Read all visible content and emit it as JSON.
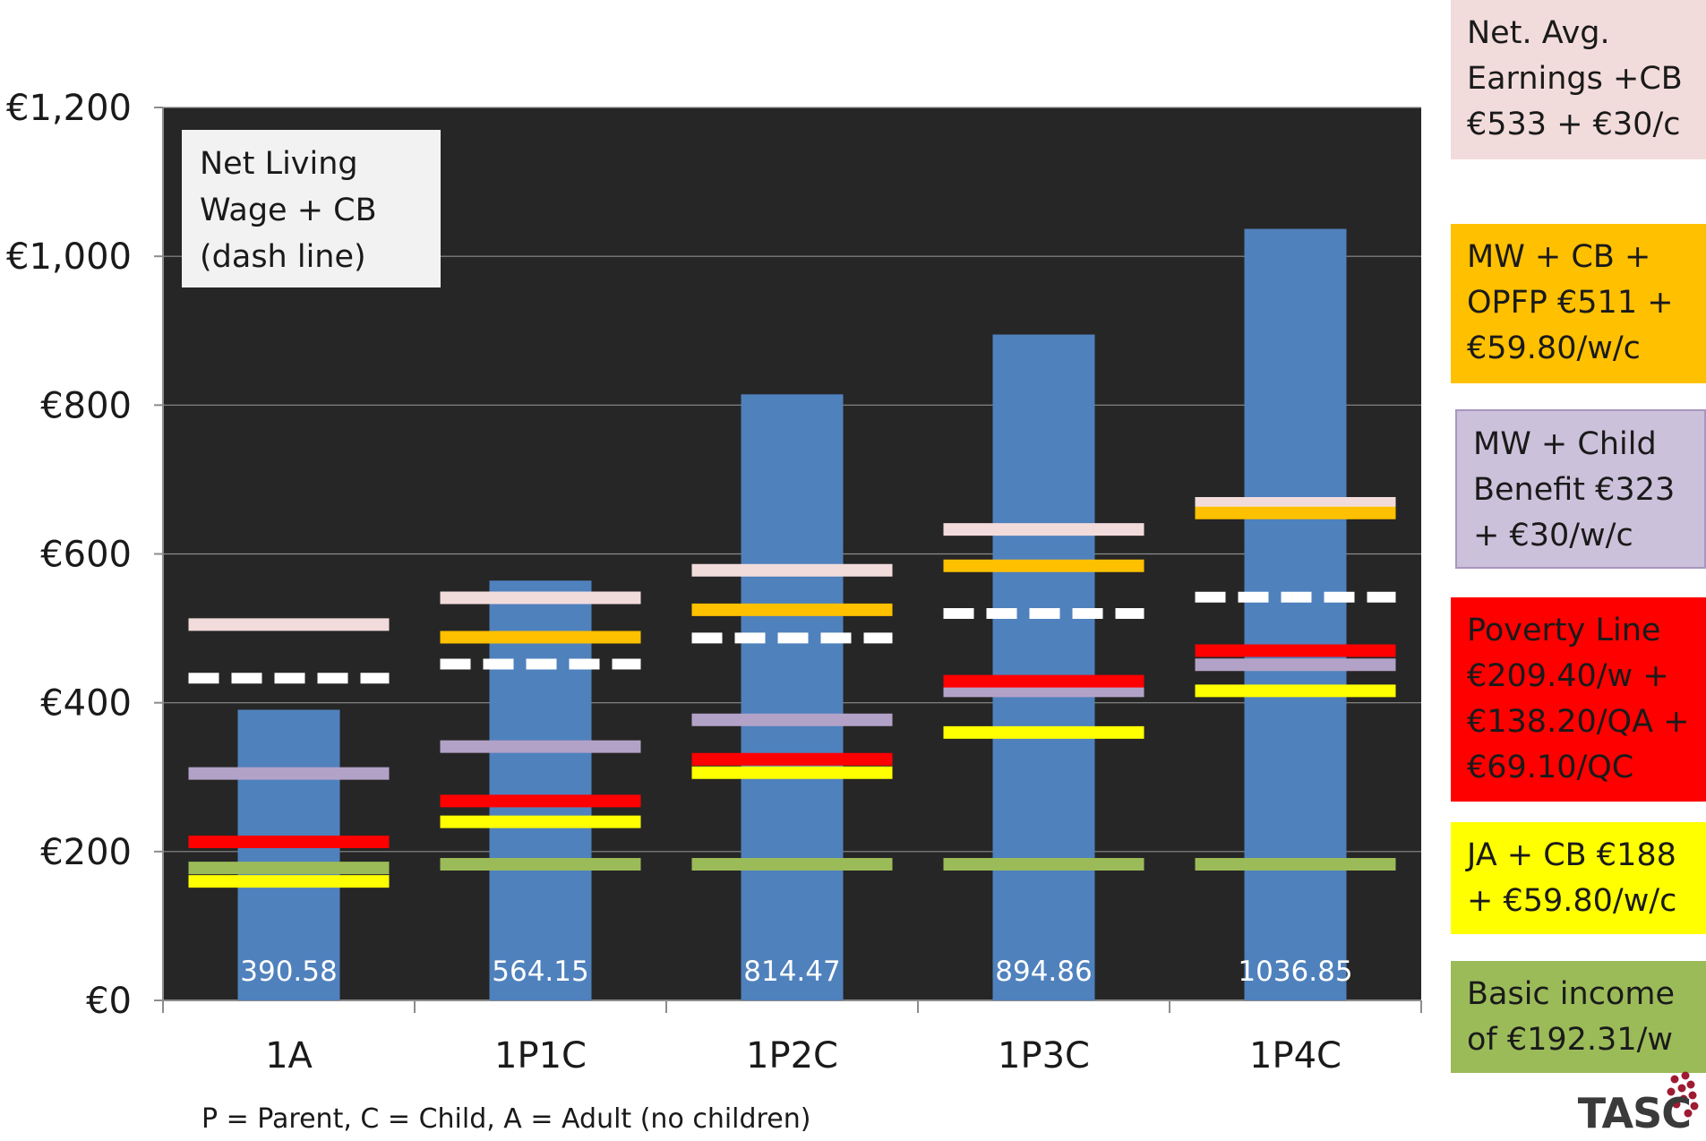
{
  "chart_data": {
    "type": "bar",
    "categories": [
      "1A",
      "1P1C",
      "1P2C",
      "1P3C",
      "1P4C"
    ],
    "values": [
      390.58,
      564.15,
      814.47,
      894.86,
      1036.85
    ],
    "value_labels": [
      "390.58",
      "564.15",
      "814.47",
      "894.86",
      "1036.85"
    ],
    "ylim": [
      0,
      1200
    ],
    "yticks": [
      0,
      200,
      400,
      600,
      800,
      1000,
      1200
    ],
    "ytick_labels": [
      "€0",
      "€200",
      "€400",
      "€600",
      "€800",
      "€1,000",
      "€1,200"
    ],
    "grid": true,
    "plot_background": "#262626",
    "bar_color": "#4f81bd",
    "reference_lines": [
      {
        "color": "#f2dcdb",
        "style": "solid",
        "values": [
          505,
          541,
          578,
          633,
          668
        ]
      },
      {
        "color": "#ffc000",
        "style": "solid",
        "values": [
          null,
          488,
          525,
          584,
          655
        ]
      },
      {
        "color": "#ffffff",
        "style": "dashed",
        "values": [
          433,
          452,
          487,
          520,
          542
        ]
      },
      {
        "color": "#b3a2c7",
        "style": "solid",
        "values": [
          305,
          341,
          377,
          416,
          451
        ]
      },
      {
        "color": "#ff0000",
        "style": "solid",
        "values": [
          213,
          268,
          324,
          429,
          470
        ]
      },
      {
        "color": "#ffff00",
        "style": "solid",
        "values": [
          160,
          240,
          306,
          360,
          416
        ]
      },
      {
        "color": "#9bbb59",
        "style": "solid",
        "values": [
          178,
          183,
          183,
          183,
          183
        ]
      }
    ],
    "inset_note": "Net Living\nWage + CB\n(dash line)",
    "footnote": "P = Parent, C = Child, A = Adult (no children)"
  },
  "legend": [
    {
      "label": "Net. Avg.\nEarnings +CB\n€533 + €30/c",
      "color": "#f2dcdb"
    },
    {
      "label": "MW + CB +\nOPFP €511 +\n€59.80/w/c",
      "color": "#ffc000"
    },
    {
      "label": "MW + Child\nBenefit €323\n+ €30/w/c",
      "color": "#ccc1da"
    },
    {
      "label": "Poverty Line\n€209.40/w +\n€138.20/QA +\n€69.10/QC",
      "color": "#ff0000"
    },
    {
      "label": "JA + CB €188\n+ €59.80/w/c",
      "color": "#ffff00"
    },
    {
      "label": "Basic income\nof €192.31/w",
      "color": "#9bbb59"
    }
  ],
  "logo": {
    "text": "TASC",
    "dot_color": "#9e1b32"
  }
}
